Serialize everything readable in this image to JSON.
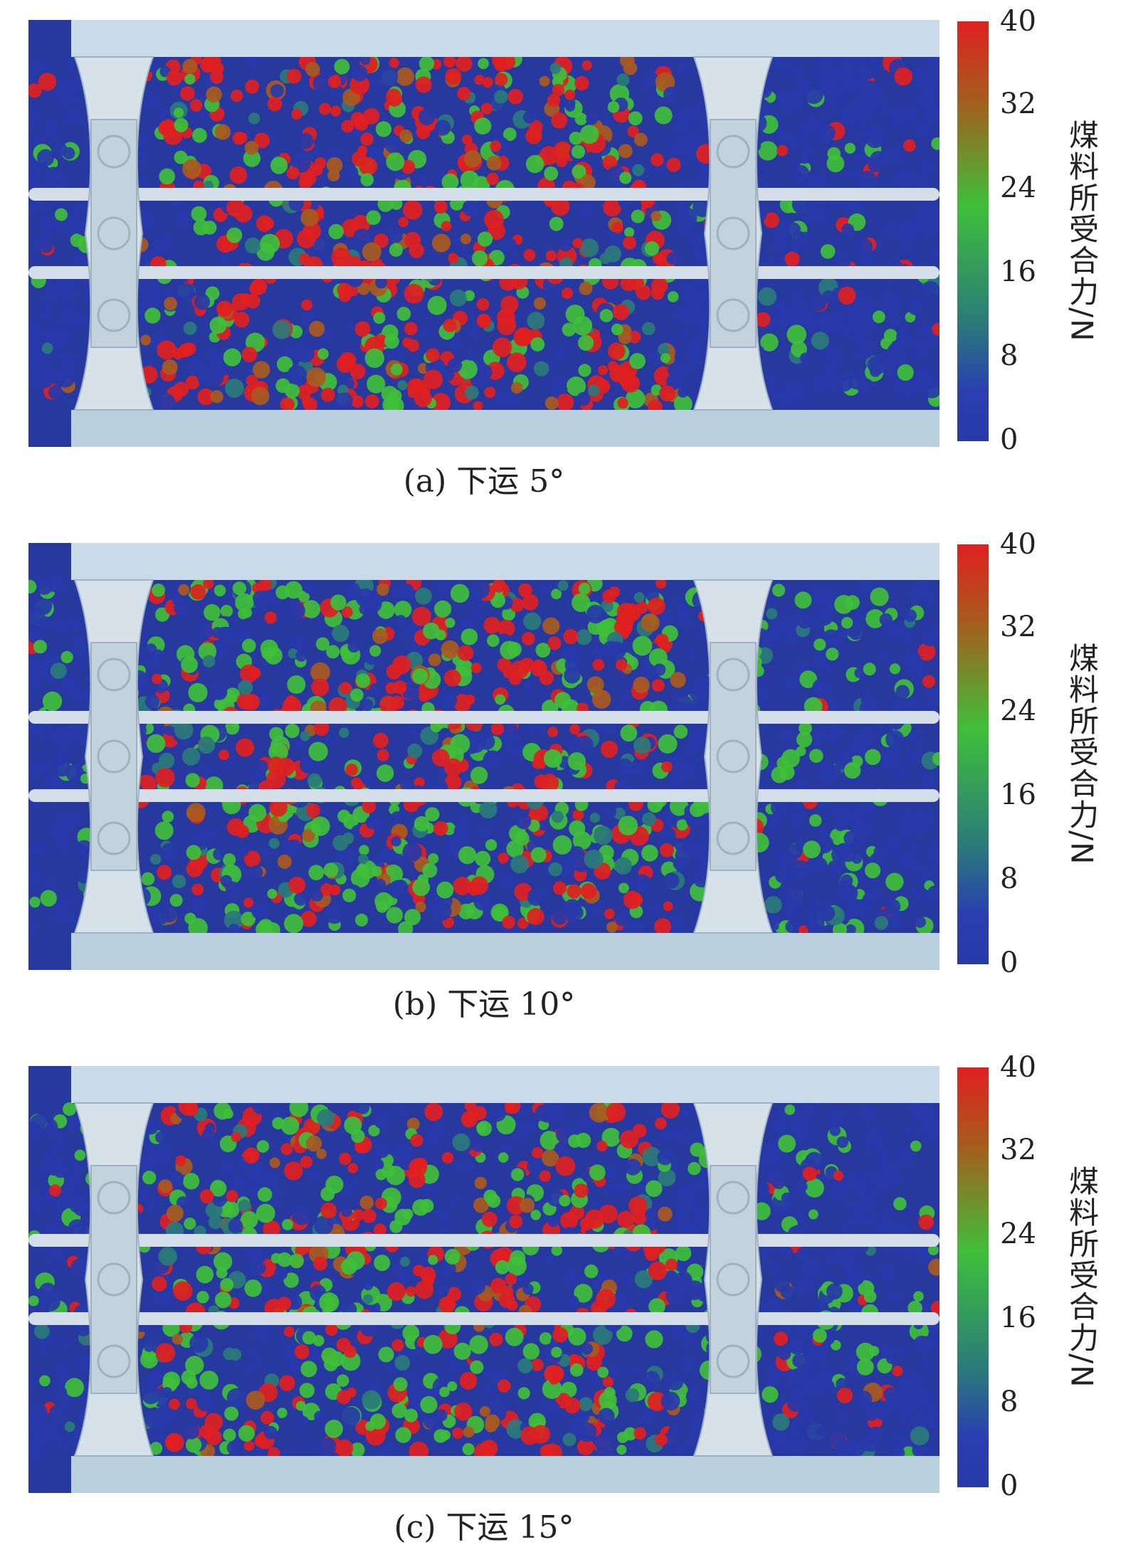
{
  "colorbar": {
    "ticks": [
      "40",
      "32",
      "24",
      "16",
      "8",
      "0"
    ],
    "label": "煤料所受合力/N",
    "colors": {
      "max": "#e02020",
      "high": "#a85a1e",
      "mid": "#3fbf3a",
      "low": "#2a7a7a",
      "min": "#273aa8"
    }
  },
  "panels": [
    {
      "caption": "(a) 下运 5°"
    },
    {
      "caption": "(b) 下运 10°"
    },
    {
      "caption": "(c) 下运 15°"
    }
  ]
}
